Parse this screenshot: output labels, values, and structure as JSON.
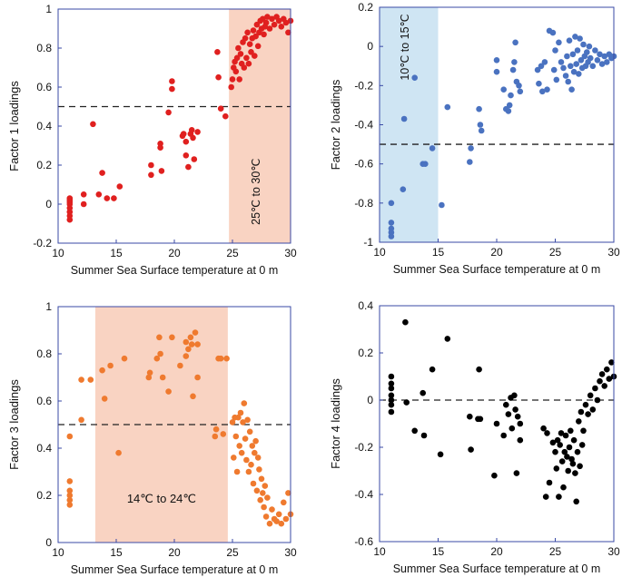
{
  "chart_data": [
    {
      "id": "factor1",
      "type": "scatter",
      "title": "",
      "xlabel": "Summer Sea Surface temperature at 0 m",
      "ylabel": "Factor 1 loadings",
      "xlim": [
        10,
        30
      ],
      "ylim": [
        -0.2,
        1.0
      ],
      "xticks": [
        10,
        15,
        20,
        25,
        30
      ],
      "yticks": [
        -0.2,
        0,
        0.2,
        0.4,
        0.6,
        0.8,
        1.0
      ],
      "ytick_labels": [
        "-0.2",
        "0",
        "0.2",
        "0.4",
        "0.6",
        "0.8",
        "1"
      ],
      "threshold": 0.5,
      "band": {
        "from": 24.7,
        "to": 30,
        "color": "#f9d3c2",
        "label": "25℃ to 30℃",
        "label_rotated": true
      },
      "color": "#e0201f",
      "points": [
        [
          11,
          -0.08
        ],
        [
          11,
          -0.06
        ],
        [
          11,
          -0.04
        ],
        [
          11,
          -0.02
        ],
        [
          11,
          0
        ],
        [
          11,
          0.01
        ],
        [
          11,
          0.02
        ],
        [
          11,
          0.03
        ],
        [
          12.2,
          0
        ],
        [
          12.2,
          0.05
        ],
        [
          13,
          0.41
        ],
        [
          13.5,
          0.05
        ],
        [
          13.8,
          0.16
        ],
        [
          14.2,
          0.03
        ],
        [
          14.8,
          0.03
        ],
        [
          15.3,
          0.09
        ],
        [
          18,
          0.2
        ],
        [
          18,
          0.15
        ],
        [
          18.8,
          0.29
        ],
        [
          18.8,
          0.31
        ],
        [
          18.9,
          0.17
        ],
        [
          19.5,
          0.47
        ],
        [
          19.8,
          0.63
        ],
        [
          19.8,
          0.59
        ],
        [
          20.7,
          0.35
        ],
        [
          20.8,
          0.36
        ],
        [
          21,
          0.32
        ],
        [
          21,
          0.25
        ],
        [
          21.2,
          0.19
        ],
        [
          21.4,
          0.36
        ],
        [
          21.5,
          0.38
        ],
        [
          21.6,
          0.34
        ],
        [
          21.7,
          0.23
        ],
        [
          22,
          0.37
        ],
        [
          23.7,
          0.78
        ],
        [
          23.8,
          0.65
        ],
        [
          24,
          0.49
        ],
        [
          24.4,
          0.45
        ],
        [
          24.9,
          0.6
        ],
        [
          25,
          0.64
        ],
        [
          25.1,
          0.7
        ],
        [
          25.2,
          0.73
        ],
        [
          25.3,
          0.68
        ],
        [
          25.4,
          0.75
        ],
        [
          25.5,
          0.8
        ],
        [
          25.6,
          0.64
        ],
        [
          25.7,
          0.77
        ],
        [
          25.8,
          0.72
        ],
        [
          25.9,
          0.83
        ],
        [
          26,
          0.7
        ],
        [
          26.1,
          0.85
        ],
        [
          26.2,
          0.75
        ],
        [
          26.3,
          0.88
        ],
        [
          26.4,
          0.72
        ],
        [
          26.5,
          0.82
        ],
        [
          26.6,
          0.78
        ],
        [
          26.7,
          0.85
        ],
        [
          26.8,
          0.89
        ],
        [
          26.9,
          0.76
        ],
        [
          27,
          0.86
        ],
        [
          27.1,
          0.92
        ],
        [
          27.2,
          0.81
        ],
        [
          27.3,
          0.88
        ],
        [
          27.4,
          0.94
        ],
        [
          27.5,
          0.9
        ],
        [
          27.6,
          0.95
        ],
        [
          27.7,
          0.87
        ],
        [
          27.8,
          0.91
        ],
        [
          27.9,
          0.93
        ],
        [
          28,
          0.96
        ],
        [
          28.2,
          0.9
        ],
        [
          28.4,
          0.95
        ],
        [
          28.6,
          0.92
        ],
        [
          28.8,
          0.96
        ],
        [
          29,
          0.94
        ],
        [
          29.2,
          0.91
        ],
        [
          29.4,
          0.95
        ],
        [
          29.6,
          0.93
        ],
        [
          29.8,
          0.88
        ],
        [
          30,
          0.94
        ]
      ]
    },
    {
      "id": "factor2",
      "type": "scatter",
      "title": "",
      "xlabel": "Summer Sea Surface temperature at 0 m",
      "ylabel": "Factor 2 loadings",
      "xlim": [
        10,
        30
      ],
      "ylim": [
        -1.0,
        0.2
      ],
      "xticks": [
        10,
        15,
        20,
        25,
        30
      ],
      "yticks": [
        -1.0,
        -0.8,
        -0.6,
        -0.4,
        -0.2,
        0,
        0.2
      ],
      "ytick_labels": [
        "-1",
        "-0.8",
        "-0.6",
        "-0.4",
        "-0.2",
        "0",
        "0.2"
      ],
      "threshold": -0.5,
      "band": {
        "from": 10,
        "to": 15,
        "color": "#cfe5f3",
        "label": "10℃ to 15℃",
        "label_rotated": true
      },
      "color": "#4a72c0",
      "points": [
        [
          11,
          -0.97
        ],
        [
          11,
          -0.95
        ],
        [
          11,
          -0.93
        ],
        [
          11,
          -0.9
        ],
        [
          11,
          -0.8
        ],
        [
          12,
          -0.73
        ],
        [
          12.1,
          -0.37
        ],
        [
          13,
          -0.16
        ],
        [
          13.7,
          -0.6
        ],
        [
          13.9,
          -0.6
        ],
        [
          14.5,
          -0.52
        ],
        [
          15.3,
          -0.81
        ],
        [
          15.8,
          -0.31
        ],
        [
          17.7,
          -0.59
        ],
        [
          17.8,
          -0.52
        ],
        [
          18.5,
          -0.32
        ],
        [
          18.6,
          -0.4
        ],
        [
          18.7,
          -0.43
        ],
        [
          20,
          -0.07
        ],
        [
          20,
          -0.13
        ],
        [
          20.6,
          -0.22
        ],
        [
          20.8,
          -0.32
        ],
        [
          21,
          -0.33
        ],
        [
          21.1,
          -0.3
        ],
        [
          21.2,
          -0.25
        ],
        [
          21.4,
          -0.12
        ],
        [
          21.5,
          -0.08
        ],
        [
          21.6,
          0.02
        ],
        [
          21.7,
          -0.18
        ],
        [
          21.9,
          -0.2
        ],
        [
          22,
          -0.23
        ],
        [
          23.5,
          -0.12
        ],
        [
          23.6,
          -0.19
        ],
        [
          23.8,
          -0.1
        ],
        [
          23.9,
          -0.23
        ],
        [
          24.1,
          -0.08
        ],
        [
          24.3,
          -0.22
        ],
        [
          24.5,
          0.08
        ],
        [
          24.8,
          0.07
        ],
        [
          24.9,
          -0.12
        ],
        [
          25,
          -0.02
        ],
        [
          25.1,
          -0.17
        ],
        [
          25.3,
          0.02
        ],
        [
          25.5,
          -0.08
        ],
        [
          25.7,
          -0.11
        ],
        [
          25.9,
          -0.15
        ],
        [
          26,
          -0.05
        ],
        [
          26.1,
          -0.18
        ],
        [
          26.2,
          0.03
        ],
        [
          26.3,
          -0.1
        ],
        [
          26.4,
          -0.22
        ],
        [
          26.5,
          -0.04
        ],
        [
          26.6,
          -0.13
        ],
        [
          26.7,
          0.05
        ],
        [
          26.8,
          -0.09
        ],
        [
          26.9,
          -0.02
        ],
        [
          27,
          -0.14
        ],
        [
          27.1,
          0.04
        ],
        [
          27.2,
          -0.07
        ],
        [
          27.3,
          -0.11
        ],
        [
          27.4,
          0.01
        ],
        [
          27.5,
          -0.05
        ],
        [
          27.6,
          -0.1
        ],
        [
          27.7,
          -0.03
        ],
        [
          27.8,
          -0.08
        ],
        [
          27.9,
          0.0
        ],
        [
          28,
          -0.06
        ],
        [
          28.2,
          -0.1
        ],
        [
          28.4,
          -0.02
        ],
        [
          28.6,
          -0.07
        ],
        [
          28.8,
          -0.04
        ],
        [
          29,
          -0.09
        ],
        [
          29.2,
          -0.05
        ],
        [
          29.4,
          -0.08
        ],
        [
          29.6,
          -0.04
        ],
        [
          29.8,
          -0.06
        ],
        [
          30,
          -0.05
        ]
      ]
    },
    {
      "id": "factor3",
      "type": "scatter",
      "title": "",
      "xlabel": "Summer Sea Surface temperature at 0 m",
      "ylabel": "Factor 3 loadings",
      "xlim": [
        10,
        30
      ],
      "ylim": [
        0,
        1.0
      ],
      "xticks": [
        10,
        15,
        20,
        25,
        30
      ],
      "yticks": [
        0,
        0.2,
        0.4,
        0.6,
        0.8,
        1.0
      ],
      "ytick_labels": [
        "0",
        "0.2",
        "0.4",
        "0.6",
        "0.8",
        "1"
      ],
      "threshold": 0.5,
      "band": {
        "from": 13.2,
        "to": 24.6,
        "color": "#f9d3c2",
        "label": "14℃ to 24℃",
        "label_rotated": false
      },
      "color": "#ef7a2f",
      "points": [
        [
          11,
          0.16
        ],
        [
          11,
          0.18
        ],
        [
          11,
          0.2
        ],
        [
          11,
          0.22
        ],
        [
          11,
          0.26
        ],
        [
          11,
          0.45
        ],
        [
          12,
          0.52
        ],
        [
          12,
          0.69
        ],
        [
          12.8,
          0.69
        ],
        [
          13.8,
          0.73
        ],
        [
          14,
          0.61
        ],
        [
          14.5,
          0.75
        ],
        [
          15.2,
          0.38
        ],
        [
          15.7,
          0.78
        ],
        [
          17.8,
          0.7
        ],
        [
          17.9,
          0.72
        ],
        [
          18.5,
          0.78
        ],
        [
          18.7,
          0.87
        ],
        [
          18.8,
          0.8
        ],
        [
          19,
          0.7
        ],
        [
          19.5,
          0.64
        ],
        [
          19.8,
          0.87
        ],
        [
          20.5,
          0.75
        ],
        [
          21,
          0.85
        ],
        [
          21,
          0.79
        ],
        [
          21.2,
          0.82
        ],
        [
          21.4,
          0.87
        ],
        [
          21.5,
          0.84
        ],
        [
          21.6,
          0.62
        ],
        [
          21.8,
          0.89
        ],
        [
          22,
          0.84
        ],
        [
          22,
          0.7
        ],
        [
          23.5,
          0.45
        ],
        [
          23.6,
          0.48
        ],
        [
          23.8,
          0.78
        ],
        [
          24,
          0.78
        ],
        [
          24.2,
          0.46
        ],
        [
          24.5,
          0.78
        ],
        [
          25,
          0.51
        ],
        [
          25.1,
          0.36
        ],
        [
          25.2,
          0.53
        ],
        [
          25.3,
          0.45
        ],
        [
          25.4,
          0.3
        ],
        [
          25.5,
          0.53
        ],
        [
          25.6,
          0.41
        ],
        [
          25.7,
          0.55
        ],
        [
          25.8,
          0.38
        ],
        [
          25.9,
          0.51
        ],
        [
          26,
          0.59
        ],
        [
          26.1,
          0.44
        ],
        [
          26.2,
          0.35
        ],
        [
          26.3,
          0.52
        ],
        [
          26.4,
          0.3
        ],
        [
          26.5,
          0.47
        ],
        [
          26.6,
          0.33
        ],
        [
          26.7,
          0.41
        ],
        [
          26.8,
          0.25
        ],
        [
          26.9,
          0.38
        ],
        [
          27,
          0.43
        ],
        [
          27.1,
          0.22
        ],
        [
          27.2,
          0.36
        ],
        [
          27.3,
          0.31
        ],
        [
          27.4,
          0.18
        ],
        [
          27.5,
          0.27
        ],
        [
          27.6,
          0.21
        ],
        [
          27.7,
          0.15
        ],
        [
          27.8,
          0.24
        ],
        [
          27.9,
          0.11
        ],
        [
          28,
          0.19
        ],
        [
          28.2,
          0.08
        ],
        [
          28.4,
          0.14
        ],
        [
          28.6,
          0.1
        ],
        [
          28.8,
          0.09
        ],
        [
          29,
          0.12
        ],
        [
          29.2,
          0.08
        ],
        [
          29.4,
          0.17
        ],
        [
          29.6,
          0.1
        ],
        [
          29.8,
          0.21
        ],
        [
          30,
          0.12
        ]
      ]
    },
    {
      "id": "factor4",
      "type": "scatter",
      "title": "",
      "xlabel": "Summer Sea Surface temperature at 0 m",
      "ylabel": "Factor 4 loadings",
      "xlim": [
        10,
        30
      ],
      "ylim": [
        -0.6,
        0.4
      ],
      "xticks": [
        10,
        15,
        20,
        25,
        30
      ],
      "yticks": [
        -0.6,
        -0.4,
        -0.2,
        0,
        0.2,
        0.4
      ],
      "ytick_labels": [
        "-0.6",
        "-0.4",
        "-0.2",
        "0",
        "0.2",
        "0.4"
      ],
      "threshold": 0.0,
      "band": null,
      "color": "#000000",
      "points": [
        [
          11,
          0.1
        ],
        [
          11,
          0.07
        ],
        [
          11,
          0.05
        ],
        [
          11,
          0.02
        ],
        [
          11,
          0
        ],
        [
          11,
          -0.02
        ],
        [
          11,
          -0.05
        ],
        [
          12.2,
          0.33
        ],
        [
          12.3,
          -0.01
        ],
        [
          13,
          -0.13
        ],
        [
          13.7,
          0.03
        ],
        [
          13.8,
          -0.15
        ],
        [
          14.5,
          0.13
        ],
        [
          15.2,
          -0.23
        ],
        [
          15.8,
          0.26
        ],
        [
          17.7,
          -0.07
        ],
        [
          17.8,
          -0.21
        ],
        [
          18.4,
          -0.08
        ],
        [
          18.5,
          0.13
        ],
        [
          18.6,
          -0.08
        ],
        [
          19.8,
          -0.32
        ],
        [
          20,
          -0.1
        ],
        [
          20.6,
          -0.15
        ],
        [
          20.8,
          -0.02
        ],
        [
          21,
          -0.06
        ],
        [
          21.2,
          0.01
        ],
        [
          21.3,
          -0.12
        ],
        [
          21.5,
          0.02
        ],
        [
          21.6,
          -0.04
        ],
        [
          21.7,
          -0.31
        ],
        [
          21.8,
          -0.07
        ],
        [
          22,
          -0.17
        ],
        [
          22,
          -0.1
        ],
        [
          24,
          -0.12
        ],
        [
          24.2,
          -0.41
        ],
        [
          24.3,
          -0.14
        ],
        [
          24.5,
          -0.35
        ],
        [
          24.8,
          -0.18
        ],
        [
          25,
          -0.22
        ],
        [
          25.1,
          -0.29
        ],
        [
          25.2,
          -0.17
        ],
        [
          25.3,
          -0.41
        ],
        [
          25.4,
          -0.19
        ],
        [
          25.5,
          -0.14
        ],
        [
          25.6,
          -0.26
        ],
        [
          25.7,
          -0.37
        ],
        [
          25.8,
          -0.22
        ],
        [
          25.9,
          -0.15
        ],
        [
          26,
          -0.24
        ],
        [
          26.1,
          -0.3
        ],
        [
          26.2,
          -0.2
        ],
        [
          26.3,
          -0.13
        ],
        [
          26.4,
          -0.25
        ],
        [
          26.5,
          -0.27
        ],
        [
          26.6,
          -0.17
        ],
        [
          26.7,
          -0.31
        ],
        [
          26.8,
          -0.43
        ],
        [
          26.9,
          -0.22
        ],
        [
          27,
          -0.09
        ],
        [
          27.1,
          -0.28
        ],
        [
          27.2,
          -0.05
        ],
        [
          27.3,
          -0.19
        ],
        [
          27.4,
          -0.13
        ],
        [
          27.6,
          -0.02
        ],
        [
          27.8,
          -0.06
        ],
        [
          28,
          0.02
        ],
        [
          28.2,
          -0.04
        ],
        [
          28.4,
          0.05
        ],
        [
          28.6,
          0.0
        ],
        [
          28.8,
          0.08
        ],
        [
          29,
          0.11
        ],
        [
          29.2,
          0.06
        ],
        [
          29.4,
          0.13
        ],
        [
          29.6,
          0.09
        ],
        [
          29.8,
          0.16
        ],
        [
          30,
          0.1
        ]
      ]
    }
  ]
}
